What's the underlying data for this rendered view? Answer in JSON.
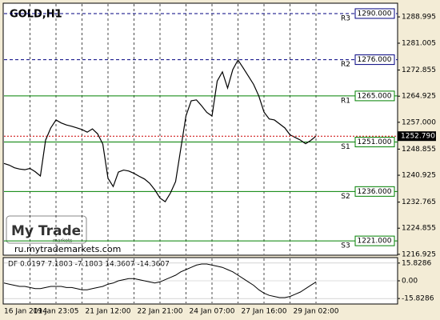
{
  "chart_data": {
    "type": "line",
    "title": "GOLD,H1",
    "categories": [
      "16 Jan 2014",
      null,
      null,
      null,
      null,
      null,
      null,
      null,
      null,
      null,
      "19 Jan 23:05",
      null,
      null,
      null,
      null,
      null,
      null,
      null,
      null,
      null,
      "21 Jan 12:00",
      null,
      null,
      null,
      null,
      null,
      null,
      null,
      null,
      null,
      "22 Jan 21:00",
      null,
      null,
      null,
      null,
      null,
      null,
      null,
      null,
      null,
      "24 Jan 07:00",
      null,
      null,
      null,
      null,
      null,
      null,
      null,
      null,
      null,
      "27 Jan 16:00",
      null,
      null,
      null,
      null,
      null,
      null,
      null,
      null,
      null,
      "29 Jan 02:00"
    ],
    "series": [
      {
        "name": "GOLD,H1",
        "color": "#000000",
        "values": [
          1244.5,
          1244,
          1243.2,
          1242.8,
          1242.6,
          1243,
          1242,
          1240.7,
          1251.6,
          1255.3,
          1257.7,
          1256.8,
          1256.2,
          1255.8,
          1255.3,
          1254.8,
          1254,
          1255,
          1253.5,
          1250.4,
          1240,
          1237.5,
          1241.9,
          1242.5,
          1242.2,
          1241.5,
          1240.6,
          1239.8,
          1238.5,
          1236.5,
          1234,
          1232.9,
          1235.5,
          1239,
          1249,
          1259,
          1263.5,
          1263.8,
          1262,
          1260,
          1258.9,
          1269.5,
          1272.3,
          1267.4,
          1273,
          1275.9,
          1273.5,
          1271,
          1268.5,
          1265,
          1260.1,
          1258,
          1257.7,
          1256.5,
          1255.3,
          1253.2,
          1252.4,
          1251.6,
          1250.5,
          1251.5,
          1252.79
        ]
      }
    ],
    "current_price": {
      "value": 1252.79,
      "label": "1252.790"
    },
    "ylim": [
      1216.9,
      1292.9
    ],
    "yticks": [
      1288.995,
      1281.005,
      1272.855,
      1264.925,
      {
        "value": 1257.0,
        "label": "1257.000"
      },
      1248.855,
      1240.925,
      1232.765,
      1224.855,
      1216.925
    ],
    "levels": [
      {
        "name": "R3",
        "value": 1290.0,
        "label": "1290.000",
        "color": "#000080"
      },
      {
        "name": "R2",
        "value": 1276.0,
        "label": "1276.000",
        "color": "#000080"
      },
      {
        "name": "R1",
        "value": 1265.0,
        "label": "1265.000",
        "color": "#008000"
      },
      {
        "name": "S1",
        "value": 1251.0,
        "label": "1251.000",
        "color": "#008000"
      },
      {
        "name": "S2",
        "value": 1236.0,
        "label": "1236.000",
        "color": "#008000"
      },
      {
        "name": "S3",
        "value": 1221.0,
        "label": "1221.000",
        "color": "#008000"
      }
    ],
    "indicator": {
      "title": "DF 0.0197 7.1803 -7.1803 14.3607 -14.3607",
      "color": "#000000",
      "values": [
        -2,
        -3,
        -4,
        -5,
        -5,
        -6,
        -7,
        -7,
        -6,
        -5,
        -5,
        -5,
        -6,
        -6,
        -7,
        -8,
        -8,
        -7,
        -6,
        -5,
        -3,
        -2,
        0,
        1,
        2,
        2,
        1,
        0,
        -1,
        -2,
        -1,
        1,
        3,
        5,
        8,
        10,
        12,
        14,
        15,
        15,
        14,
        13,
        12,
        10,
        8,
        5,
        2,
        -1,
        -4,
        -8,
        -11,
        -13,
        -14,
        -15,
        -15,
        -14,
        -12,
        -10,
        -7,
        -4,
        -1
      ],
      "ylim": [
        -20,
        20
      ],
      "yticks": [
        15.8286,
        {
          "value": 0,
          "label": "0.00"
        },
        -15.8286
      ]
    },
    "logo": {
      "name": "My Trade",
      "sub": "markets",
      "url": "ru.mytrademarkets.com"
    }
  }
}
